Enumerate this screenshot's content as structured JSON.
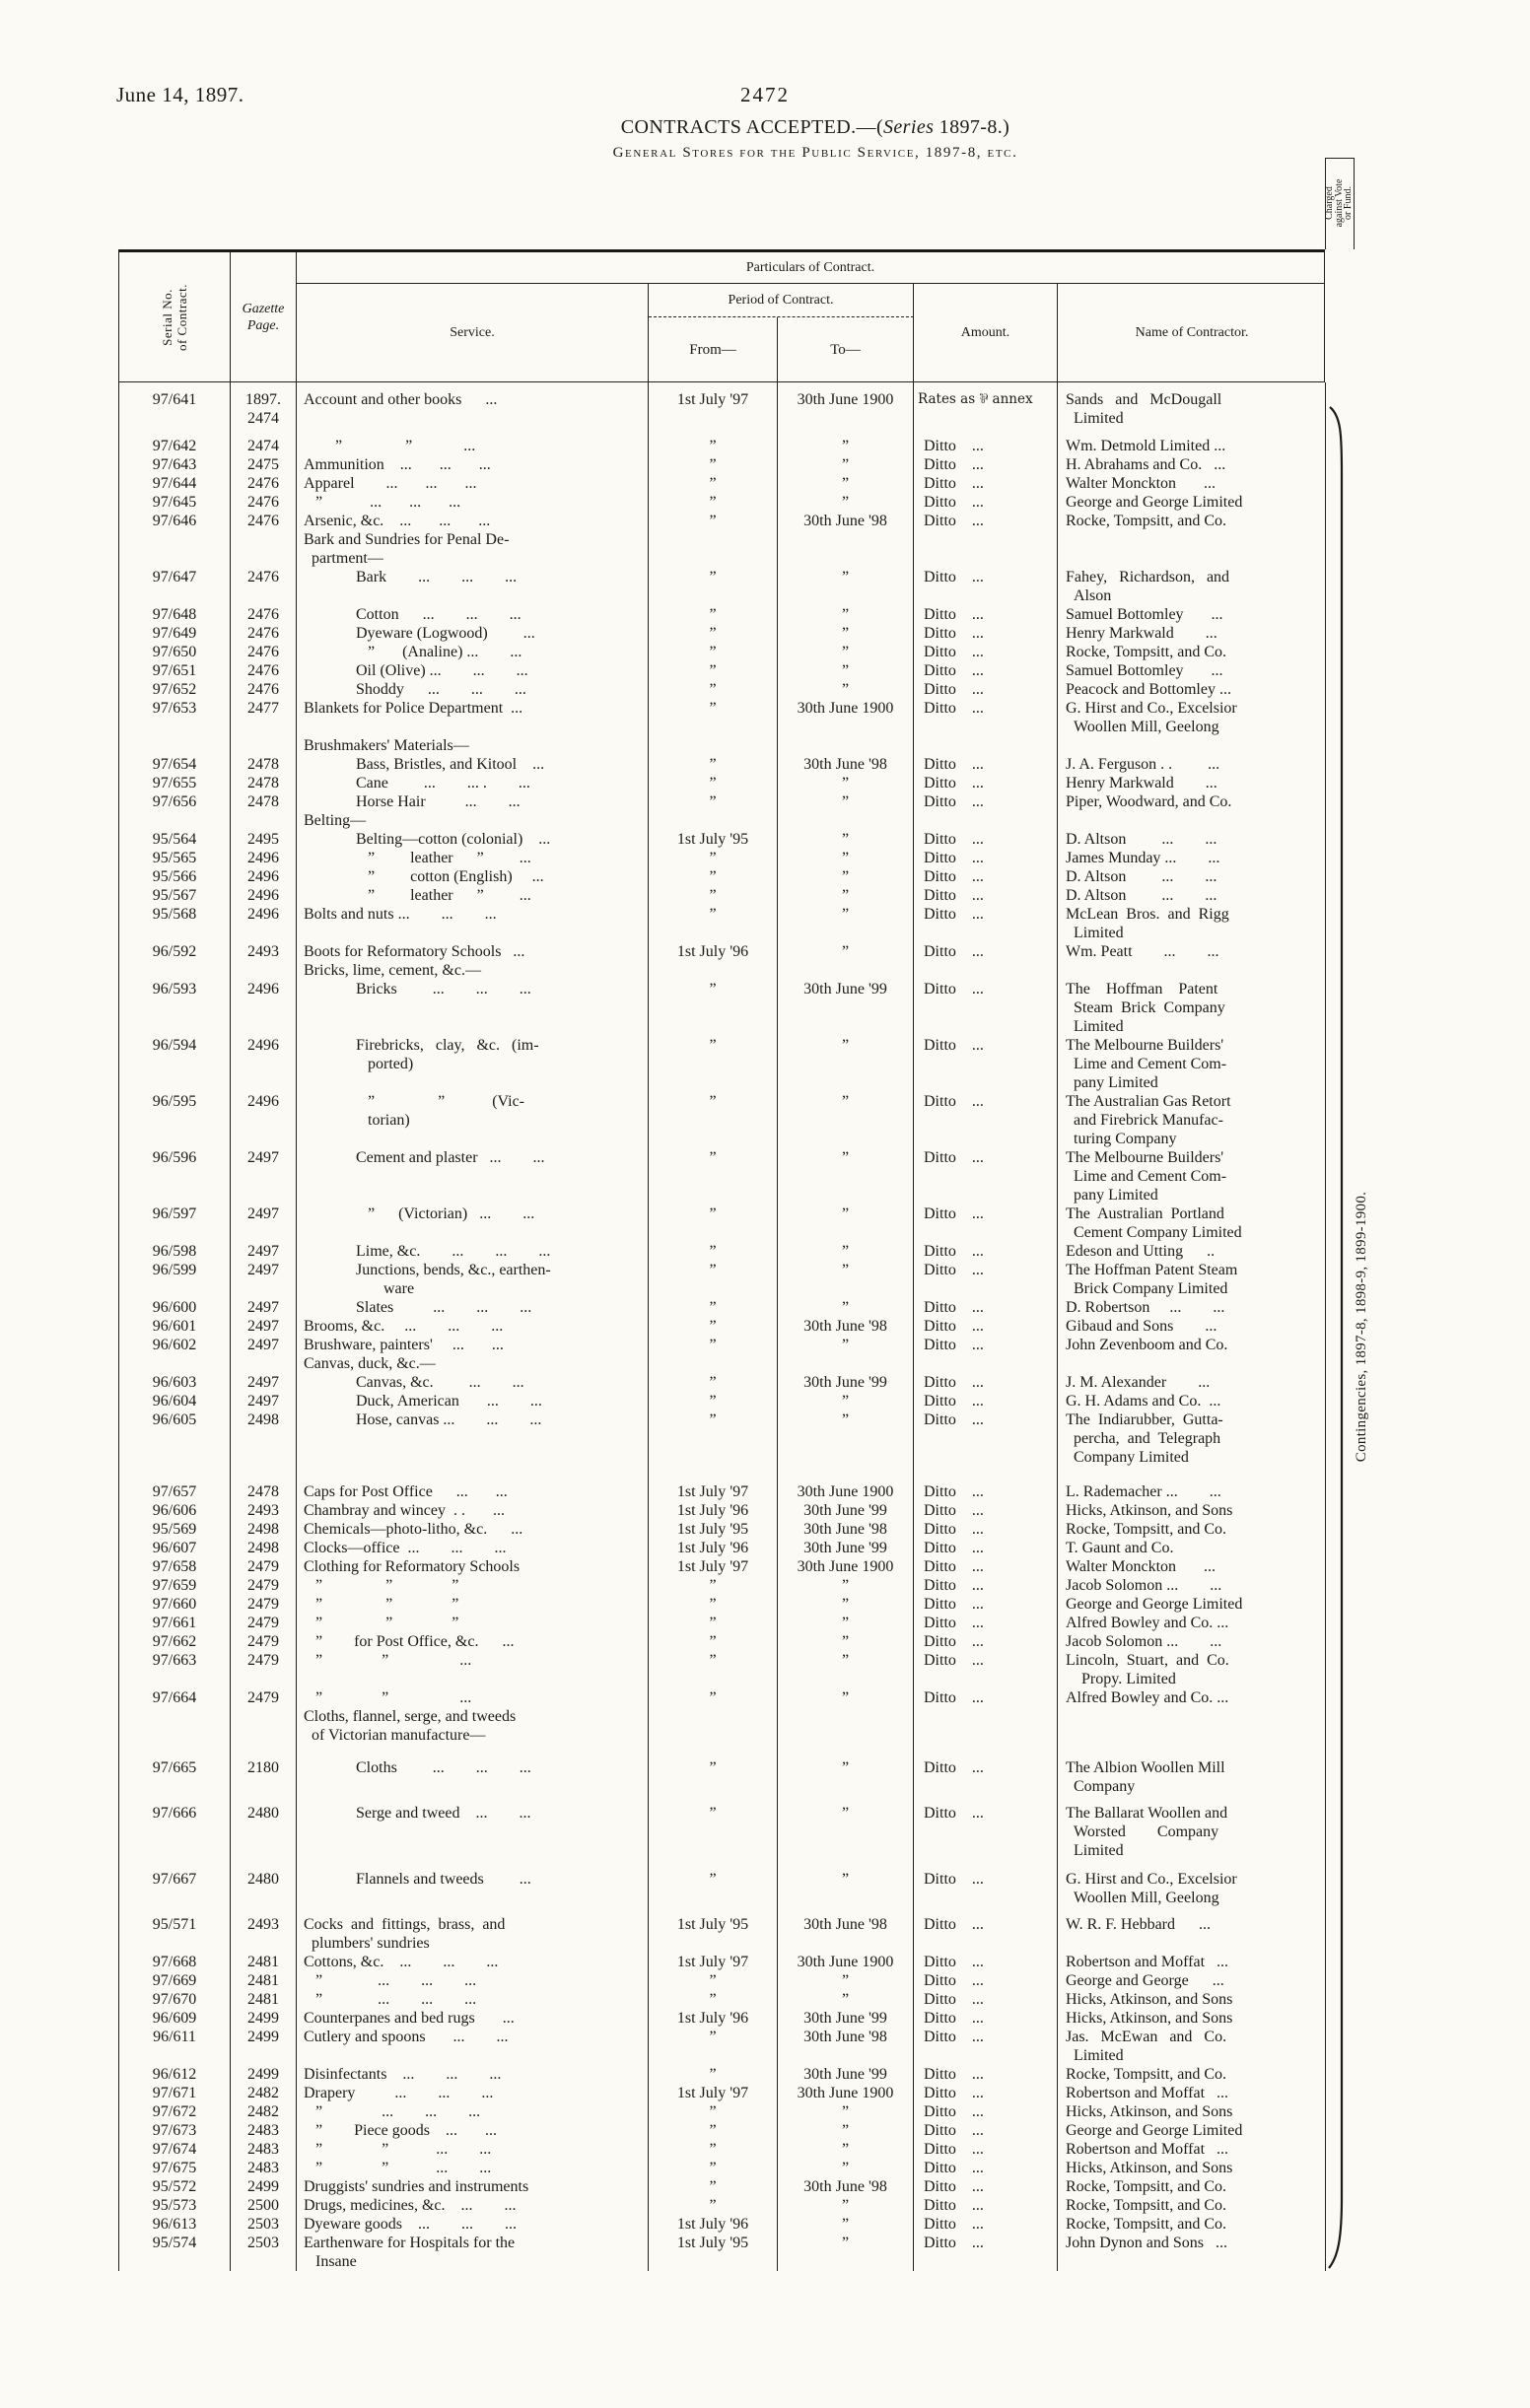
{
  "page": {
    "date": "June 14, 1897.",
    "page_number": "2472",
    "title_prefix": "CONTRACTS ACCEPTED.—(",
    "title_italic": "Series",
    "title_suffix": " 1897-8.)",
    "subtitle": "General Stores for the Public Service, 1897-8, etc."
  },
  "table": {
    "headers": {
      "serial": "Serial No.\nof Contract.",
      "gazette": "Gazette\nPage.",
      "particulars": "Particulars of Contract.",
      "service": "Service.",
      "period": "Period of Contract.",
      "from": "From—",
      "to": "To—",
      "amount": "Amount.",
      "contractor": "Name of Contractor.",
      "charged": "Charged\nagainst Vote\nor Fund."
    },
    "charged_value": "Contingencies, 1897-8, 1898-9, 1899-1900.",
    "rows": [
      {
        "serial": "97/641",
        "gazette": "1897.\n2474",
        "service": "Account and other books      ...",
        "from": "1st July '97",
        "to": "30th June 1900",
        "amount": "Rates as ⅌ annex",
        "contractor": "Sands   and   McDougall\n  Limited",
        "gap": 8
      },
      {
        "serial": "97/642",
        "gazette": "2474",
        "service": "        ”                ”             ...",
        "from": "”",
        "to": "”",
        "amount": "Ditto    ...",
        "contractor": "Wm. Detmold Limited ...",
        "gap": 9
      },
      {
        "serial": "97/643",
        "gazette": "2475",
        "service": "Ammunition    ...       ...       ...",
        "from": "”",
        "to": "”",
        "amount": "Ditto    ...",
        "contractor": "H. Abrahams and Co.   ..."
      },
      {
        "serial": "97/644",
        "gazette": "2476",
        "service": "Apparel        ...       ...       ...",
        "from": "”",
        "to": "”",
        "amount": "Ditto    ...",
        "contractor": "Walter Monckton       ..."
      },
      {
        "serial": "97/645",
        "gazette": "2476",
        "service": "   ”            ...       ...       ...",
        "from": "”",
        "to": "”",
        "amount": "Ditto    ...",
        "contractor": "George and George Limited"
      },
      {
        "serial": "97/646",
        "gazette": "2476",
        "service": "Arsenic, &c.    ...       ...       ...",
        "from": "”",
        "to": "30th June '98",
        "amount": "Ditto    ...",
        "contractor": "Rocke, Tompsitt, and Co."
      },
      {
        "section": "Bark and Sundries for Penal De-\n  partment—"
      },
      {
        "serial": "97/647",
        "gazette": "2476",
        "service": "Bark        ...        ...        ...",
        "indent": 1,
        "from": "”",
        "to": "”",
        "amount": "Ditto    ...",
        "contractor": "Fahey,   Richardson,   and\n  Alson"
      },
      {
        "serial": "97/648",
        "gazette": "2476",
        "service": "Cotton      ...        ...        ...",
        "indent": 1,
        "from": "”",
        "to": "”",
        "amount": "Ditto    ...",
        "contractor": "Samuel Bottomley       ..."
      },
      {
        "serial": "97/649",
        "gazette": "2476",
        "service": "Dyeware (Logwood)         ...",
        "indent": 1,
        "from": "”",
        "to": "”",
        "amount": "Ditto    ...",
        "contractor": "Henry Markwald        ..."
      },
      {
        "serial": "97/650",
        "gazette": "2476",
        "service": "   ”       (Analine) ...        ...",
        "indent": 1,
        "from": "”",
        "to": "”",
        "amount": "Ditto    ...",
        "contractor": "Rocke, Tompsitt, and Co."
      },
      {
        "serial": "97/651",
        "gazette": "2476",
        "service": "Oil (Olive) ...        ...        ...",
        "indent": 1,
        "from": "”",
        "to": "”",
        "amount": "Ditto    ...",
        "contractor": "Samuel Bottomley       ..."
      },
      {
        "serial": "97/652",
        "gazette": "2476",
        "service": "Shoddy      ...        ...        ...",
        "indent": 1,
        "from": "”",
        "to": "”",
        "amount": "Ditto    ...",
        "contractor": "Peacock and Bottomley ..."
      },
      {
        "serial": "97/653",
        "gazette": "2477",
        "service": "Blankets for Police Department  ...",
        "from": "”",
        "to": "30th June 1900",
        "amount": "Ditto    ...",
        "contractor": "G. Hirst and Co., Excelsior\n  Woollen Mill, Geelong"
      },
      {
        "section": "Brushmakers' Materials—"
      },
      {
        "serial": "97/654",
        "gazette": "2478",
        "service": "Bass, Bristles, and Kitool    ...",
        "indent": 1,
        "from": "”",
        "to": "30th June '98",
        "amount": "Ditto    ...",
        "contractor": "J. A. Ferguson . .         ..."
      },
      {
        "serial": "97/655",
        "gazette": "2478",
        "service": "Cane         ...        ... .        ...",
        "indent": 1,
        "from": "”",
        "to": "”",
        "amount": "Ditto    ...",
        "contractor": "Henry Markwald        ..."
      },
      {
        "serial": "97/656",
        "gazette": "2478",
        "service": "Horse Hair          ...        ...",
        "indent": 1,
        "from": "”",
        "to": "”",
        "amount": "Ditto    ...",
        "contractor": "Piper, Woodward, and Co."
      },
      {
        "section": "Belting—"
      },
      {
        "serial": "95/564",
        "gazette": "2495",
        "service": "Belting—cotton (colonial)    ...",
        "indent": 1,
        "from": "1st July '95",
        "to": "”",
        "amount": "Ditto    ...",
        "contractor": "D. Altson         ...        ..."
      },
      {
        "serial": "95/565",
        "gazette": "2496",
        "service": "   ”         leather      ”         ...",
        "indent": 1,
        "from": "”",
        "to": "”",
        "amount": "Ditto    ...",
        "contractor": "James Munday ...        ..."
      },
      {
        "serial": "95/566",
        "gazette": "2496",
        "service": "   ”         cotton (English)     ...",
        "indent": 1,
        "from": "”",
        "to": "”",
        "amount": "Ditto    ...",
        "contractor": "D. Altson         ...        ..."
      },
      {
        "serial": "95/567",
        "gazette": "2496",
        "service": "   ”         leather      ”         ...",
        "indent": 1,
        "from": "”",
        "to": "”",
        "amount": "Ditto    ...",
        "contractor": "D. Altson         ...        ..."
      },
      {
        "serial": "95/568",
        "gazette": "2496",
        "service": "Bolts and nuts ...        ...        ...",
        "from": "”",
        "to": "”",
        "amount": "Ditto    ...",
        "contractor": "McLean  Bros.  and  Rigg\n  Limited"
      },
      {
        "serial": "96/592",
        "gazette": "2493",
        "service": "Boots for Reformatory Schools   ...",
        "from": "1st July '96",
        "to": "”",
        "amount": "Ditto    ...",
        "contractor": "Wm. Peatt        ...        ..."
      },
      {
        "section": "Bricks, lime, cement, &c.—"
      },
      {
        "serial": "96/593",
        "gazette": "2496",
        "service": "Bricks         ...        ...        ...",
        "indent": 1,
        "from": "”",
        "to": "30th June '99",
        "amount": "Ditto    ...",
        "contractor": "The    Hoffman    Patent\n  Steam  Brick  Company\n  Limited"
      },
      {
        "serial": "96/594",
        "gazette": "2496",
        "service": "Firebricks,   clay,   &c.   (im-\n   ported)",
        "indent": 1,
        "from": "”",
        "to": "”",
        "amount": "Ditto    ...",
        "contractor": "The Melbourne Builders'\n  Lime and Cement Com-\n  pany Limited"
      },
      {
        "serial": "96/595",
        "gazette": "2496",
        "service": "   ”                ”            (Vic-\n   torian)",
        "indent": 1,
        "from": "”",
        "to": "”",
        "amount": "Ditto    ...",
        "contractor": "The Australian Gas Retort\n  and Firebrick Manufac-\n  turing Company"
      },
      {
        "serial": "96/596",
        "gazette": "2497",
        "service": "Cement and plaster   ...        ...",
        "indent": 1,
        "from": "”",
        "to": "”",
        "amount": "Ditto    ...",
        "contractor": "The Melbourne Builders'\n  Lime and Cement Com-\n  pany Limited"
      },
      {
        "serial": "96/597",
        "gazette": "2497",
        "service": "   ”      (Victorian)   ...        ...",
        "indent": 1,
        "from": "”",
        "to": "”",
        "amount": "Ditto    ...",
        "contractor": "The  Australian  Portland\n  Cement Company Limited"
      },
      {
        "serial": "96/598",
        "gazette": "2497",
        "service": "Lime, &c.        ...        ...        ...",
        "indent": 1,
        "from": "”",
        "to": "”",
        "amount": "Ditto    ...",
        "contractor": "Edeson and Utting      .."
      },
      {
        "serial": "96/599",
        "gazette": "2497",
        "service": "Junctions, bends, &c., earthen-\n       ware",
        "indent": 1,
        "from": "”",
        "to": "”",
        "amount": "Ditto    ...",
        "contractor": "The Hoffman Patent Steam\n  Brick Company Limited"
      },
      {
        "serial": "96/600",
        "gazette": "2497",
        "service": "Slates          ...        ...        ...",
        "indent": 1,
        "from": "”",
        "to": "”",
        "amount": "Ditto    ...",
        "contractor": "D. Robertson     ...        ..."
      },
      {
        "serial": "96/601",
        "gazette": "2497",
        "service": "Brooms, &c.     ...        ...        ...",
        "from": "”",
        "to": "30th June '98",
        "amount": "Ditto    ...",
        "contractor": "Gibaud and Sons        ..."
      },
      {
        "serial": "96/602",
        "gazette": "2497",
        "service": "Brushware, painters'     ...       ...",
        "from": "”",
        "to": "”",
        "amount": "Ditto    ...",
        "contractor": "John Zevenboom and Co."
      },
      {
        "section": "Canvas, duck, &c.—"
      },
      {
        "serial": "96/603",
        "gazette": "2497",
        "service": "Canvas, &c.         ...        ...",
        "indent": 1,
        "from": "”",
        "to": "30th June '99",
        "amount": "Ditto    ...",
        "contractor": "J. M. Alexander        ..."
      },
      {
        "serial": "96/604",
        "gazette": "2497",
        "service": "Duck, American       ...        ...",
        "indent": 1,
        "from": "”",
        "to": "”",
        "amount": "Ditto    ...",
        "contractor": "G. H. Adams and Co.  ..."
      },
      {
        "serial": "96/605",
        "gazette": "2498",
        "service": "Hose, canvas ...        ...        ...",
        "indent": 1,
        "from": "”",
        "to": "”",
        "amount": "Ditto    ...",
        "contractor": "The  Indiarubber,  Gutta-\n  percha,  and  Telegraph\n  Company Limited"
      },
      {
        "serial": "97/657",
        "gazette": "2478",
        "service": "Caps for Post Office      ...       ...",
        "from": "1st July '97",
        "to": "30th June 1900",
        "amount": "Ditto    ...",
        "contractor": "L. Rademacher ...        ...",
        "gap": 16
      },
      {
        "serial": "96/606",
        "gazette": "2493",
        "service": "Chambray and wincey  . .       ...",
        "from": "1st July '96",
        "to": "30th June '99",
        "amount": "Ditto    ...",
        "contractor": "Hicks, Atkinson, and Sons"
      },
      {
        "serial": "95/569",
        "gazette": "2498",
        "service": "Chemicals—photo-litho, &c.      ...",
        "from": "1st July '95",
        "to": "30th June '98",
        "amount": "Ditto    ...",
        "contractor": "Rocke, Tompsitt, and Co."
      },
      {
        "serial": "96/607",
        "gazette": "2498",
        "service": "Clocks—office  ...        ...        ...",
        "from": "1st July '96",
        "to": "30th June '99",
        "amount": "Ditto    ...",
        "contractor": "T. Gaunt and Co."
      },
      {
        "serial": "97/658",
        "gazette": "2479",
        "service": "Clothing for Reformatory Schools",
        "from": "1st July '97",
        "to": "30th June 1900",
        "amount": "Ditto    ...",
        "contractor": "Walter Monckton       ..."
      },
      {
        "serial": "97/659",
        "gazette": "2479",
        "service": "   ”                ”               ”",
        "from": "”",
        "to": "”",
        "amount": "Ditto    ...",
        "contractor": "Jacob Solomon ...        ..."
      },
      {
        "serial": "97/660",
        "gazette": "2479",
        "service": "   ”                ”               ”",
        "from": "”",
        "to": "”",
        "amount": "Ditto    ...",
        "contractor": "George and George Limited"
      },
      {
        "serial": "97/661",
        "gazette": "2479",
        "service": "   ”                ”               ”",
        "from": "”",
        "to": "”",
        "amount": "Ditto    ...",
        "contractor": "Alfred Bowley and Co. ..."
      },
      {
        "serial": "97/662",
        "gazette": "2479",
        "service": "   ”        for Post Office, &c.      ...",
        "from": "”",
        "to": "”",
        "amount": "Ditto    ...",
        "contractor": "Jacob Solomon ...        ..."
      },
      {
        "serial": "97/663",
        "gazette": "2479",
        "service": "   ”               ”                  ...",
        "from": "”",
        "to": "”",
        "amount": "Ditto    ...",
        "contractor": "Lincoln,  Stuart,  and  Co.\n    Propy. Limited"
      },
      {
        "serial": "97/664",
        "gazette": "2479",
        "service": "   ”               ”                  ...",
        "from": "”",
        "to": "”",
        "amount": "Ditto    ...",
        "contractor": "Alfred Bowley and Co. ..."
      },
      {
        "section": "Cloths, flannel, serge, and tweeds\n  of Victorian manufacture—"
      },
      {
        "serial": "97/665",
        "gazette": "2180",
        "service": "Cloths         ...        ...        ...",
        "indent": 1,
        "from": "”",
        "to": "”",
        "amount": "Ditto    ...",
        "contractor": "The Albion Woollen Mill\n  Company",
        "gap": 14
      },
      {
        "serial": "97/666",
        "gazette": "2480",
        "service": "Serge and tweed    ...        ...",
        "indent": 1,
        "from": "”",
        "to": "”",
        "amount": "Ditto    ...",
        "contractor": "The Ballarat Woollen and\n  Worsted        Company\n  Limited",
        "gap": 8
      },
      {
        "serial": "97/667",
        "gazette": "2480",
        "service": "Flannels and tweeds         ...",
        "indent": 1,
        "from": "”",
        "to": "”",
        "amount": "Ditto    ...",
        "contractor": "G. Hirst and Co., Excelsior\n  Woollen Mill, Geelong",
        "gap": 10
      },
      {
        "serial": "95/571",
        "gazette": "2493",
        "service": "Cocks  and  fittings,  brass,  and\n  plumbers' sundries",
        "from": "1st July '95",
        "to": "30th June '98",
        "amount": "Ditto    ...",
        "contractor": "W. R. F. Hebbard      ...",
        "gap": 8
      },
      {
        "serial": "97/668",
        "gazette": "2481",
        "service": "Cottons, &c.    ...        ...        ...",
        "from": "1st July '97",
        "to": "30th June 1900",
        "amount": "Ditto    ...",
        "contractor": "Robertson and Moffat   ..."
      },
      {
        "serial": "97/669",
        "gazette": "2481",
        "service": "   ”              ...        ...        ...",
        "from": "”",
        "to": "”",
        "amount": "Ditto    ...",
        "contractor": "George and George      ..."
      },
      {
        "serial": "97/670",
        "gazette": "2481",
        "service": "   ”              ...        ...        ...",
        "from": "”",
        "to": "”",
        "amount": "Ditto    ...",
        "contractor": "Hicks, Atkinson, and Sons"
      },
      {
        "serial": "96/609",
        "gazette": "2499",
        "service": "Counterpanes and bed rugs       ...",
        "from": "1st July '96",
        "to": "30th June '99",
        "amount": "Ditto    ...",
        "contractor": "Hicks, Atkinson, and Sons"
      },
      {
        "serial": "96/611",
        "gazette": "2499",
        "service": "Cutlery and spoons       ...        ...",
        "from": "”",
        "to": "30th June '98",
        "amount": "Ditto    ...",
        "contractor": "Jas.   McEwan   and   Co.\n  Limited"
      },
      {
        "serial": "96/612",
        "gazette": "2499",
        "service": "Disinfectants    ...        ...        ...",
        "from": "”",
        "to": "30th June '99",
        "amount": "Ditto    ...",
        "contractor": "Rocke, Tompsitt, and Co."
      },
      {
        "serial": "97/671",
        "gazette": "2482",
        "service": "Drapery          ...        ...        ...",
        "from": "1st July '97",
        "to": "30th June 1900",
        "amount": "Ditto    ...",
        "contractor": "Robertson and Moffat   ..."
      },
      {
        "serial": "97/672",
        "gazette": "2482",
        "service": "   ”               ...        ...        ...",
        "from": "”",
        "to": "”",
        "amount": "Ditto    ...",
        "contractor": "Hicks, Atkinson, and Sons"
      },
      {
        "serial": "97/673",
        "gazette": "2483",
        "service": "   ”        Piece goods    ...       ...",
        "from": "”",
        "to": "”",
        "amount": "Ditto    ...",
        "contractor": "George and George Limited"
      },
      {
        "serial": "97/674",
        "gazette": "2483",
        "service": "   ”               ”            ...        ...",
        "from": "”",
        "to": "”",
        "amount": "Ditto    ...",
        "contractor": "Robertson and Moffat   ..."
      },
      {
        "serial": "97/675",
        "gazette": "2483",
        "service": "   ”               ”            ...        ...",
        "from": "”",
        "to": "”",
        "amount": "Ditto    ...",
        "contractor": "Hicks, Atkinson, and Sons"
      },
      {
        "serial": "95/572",
        "gazette": "2499",
        "service": "Druggists' sundries and instruments",
        "from": "”",
        "to": "30th June '98",
        "amount": "Ditto    ...",
        "contractor": "Rocke, Tompsitt, and Co."
      },
      {
        "serial": "95/573",
        "gazette": "2500",
        "service": "Drugs, medicines, &c.    ...        ...",
        "from": "”",
        "to": "”",
        "amount": "Ditto    ...",
        "contractor": "Rocke, Tompsitt, and Co."
      },
      {
        "serial": "96/613",
        "gazette": "2503",
        "service": "Dyeware goods    ...        ...        ...",
        "from": "1st July '96",
        "to": "”",
        "amount": "Ditto    ...",
        "contractor": "Rocke, Tompsitt, and Co."
      },
      {
        "serial": "95/574",
        "gazette": "2503",
        "service": "Earthenware for Hospitals for the\n   Insane",
        "from": "1st July '95",
        "to": "”",
        "amount": "Ditto    ...",
        "contractor": "John Dynon and Sons   ..."
      }
    ]
  }
}
